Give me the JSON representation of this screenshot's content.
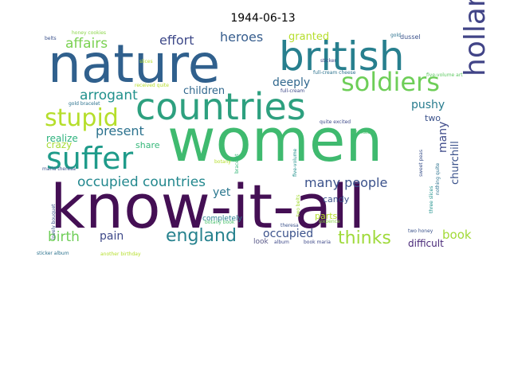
{
  "chart_data": {
    "type": "wordcloud",
    "title": "1944-06-13",
    "words": [
      {
        "text": "women",
        "color": "#3fba6f"
      },
      {
        "text": "know-it-all",
        "color": "#440f54"
      },
      {
        "text": "nature",
        "color": "#30608d"
      },
      {
        "text": "british",
        "color": "#277f8e"
      },
      {
        "text": "countries",
        "color": "#2da07f"
      },
      {
        "text": "soldiers",
        "color": "#6ece58"
      },
      {
        "text": "suffer",
        "color": "#1f9b8a"
      },
      {
        "text": "stupid",
        "color": "#b5de2b"
      },
      {
        "text": "holland",
        "color": "#414487"
      },
      {
        "text": "england",
        "color": "#26828e"
      },
      {
        "text": "thinks",
        "color": "#9fda3a"
      },
      {
        "text": "occupied countries",
        "color": "#23888e"
      },
      {
        "text": "many people",
        "color": "#3b528b"
      },
      {
        "text": "affairs",
        "color": "#7ad151"
      },
      {
        "text": "arrogant",
        "color": "#21918c"
      },
      {
        "text": "effort",
        "color": "#3e4989"
      },
      {
        "text": "heroes",
        "color": "#365d8d"
      },
      {
        "text": "granted",
        "color": "#b5de2b"
      },
      {
        "text": "present",
        "color": "#2c728e"
      },
      {
        "text": "children",
        "color": "#31688e"
      },
      {
        "text": "deeply",
        "color": "#31688e"
      },
      {
        "text": "pushy",
        "color": "#287c8e"
      },
      {
        "text": "churchill",
        "color": "#3b528b"
      },
      {
        "text": "many",
        "color": "#3e4a89"
      },
      {
        "text": "two",
        "color": "#3b528b"
      },
      {
        "text": "realize",
        "color": "#2db27d"
      },
      {
        "text": "crazy",
        "color": "#a5db36"
      },
      {
        "text": "share",
        "color": "#35b779"
      },
      {
        "text": "yet",
        "color": "#2a778e"
      },
      {
        "text": "candy",
        "color": "#3b528b"
      },
      {
        "text": "parts",
        "color": "#b5de2b"
      },
      {
        "text": "birth",
        "color": "#6ece58"
      },
      {
        "text": "pain",
        "color": "#3e4989"
      },
      {
        "text": "occupied",
        "color": "#3b528b"
      },
      {
        "text": "book",
        "color": "#a2da37"
      },
      {
        "text": "difficult",
        "color": "#482878"
      },
      {
        "text": "completely",
        "color": "#287d8e"
      },
      {
        "text": "look",
        "color": "#5a5a8a"
      },
      {
        "text": "honey cookies",
        "color": "#8ad547"
      },
      {
        "text": "belts",
        "color": "#3b528b"
      },
      {
        "text": "slices",
        "color": "#b5de2b"
      },
      {
        "text": "sticker",
        "color": "#3e4989"
      },
      {
        "text": "gold",
        "color": "#2c728e"
      },
      {
        "text": "dussel",
        "color": "#3b528b"
      },
      {
        "text": "received quite",
        "color": "#b5de2b"
      },
      {
        "text": "gold bracelet",
        "color": "#2c728e"
      },
      {
        "text": "full-cream cheese",
        "color": "#2c728e"
      },
      {
        "text": "full-cream",
        "color": "#3e4989"
      },
      {
        "text": "five-volume art",
        "color": "#5ec962"
      },
      {
        "text": "art history",
        "color": "#4ac16d"
      },
      {
        "text": "maria theresa",
        "color": "#3b528b"
      },
      {
        "text": "five-volume",
        "color": "#21918c"
      },
      {
        "text": "bracelet",
        "color": "#35b779"
      },
      {
        "text": "botany",
        "color": "#b5de2b"
      },
      {
        "text": "botany book",
        "color": "#4ac16d"
      },
      {
        "text": "theresa",
        "color": "#3b528b"
      },
      {
        "text": "sweet peas",
        "color": "#3b528b"
      },
      {
        "text": "nothing quite",
        "color": "#2c728e"
      },
      {
        "text": "three slices",
        "color": "#21918c"
      },
      {
        "text": "quite excited",
        "color": "#3e4989"
      },
      {
        "text": "lovely bouquet",
        "color": "#3b528b"
      },
      {
        "text": "two belts",
        "color": "#a5db36"
      },
      {
        "text": "two honey",
        "color": "#3b528b"
      },
      {
        "text": "sticker album",
        "color": "#2c728e"
      },
      {
        "text": "another birthday",
        "color": "#b5de2b"
      },
      {
        "text": "album",
        "color": "#3e4989"
      },
      {
        "text": "book maria",
        "color": "#3e4989"
      },
      {
        "text": "sixpence",
        "color": "#8ad547"
      }
    ]
  }
}
